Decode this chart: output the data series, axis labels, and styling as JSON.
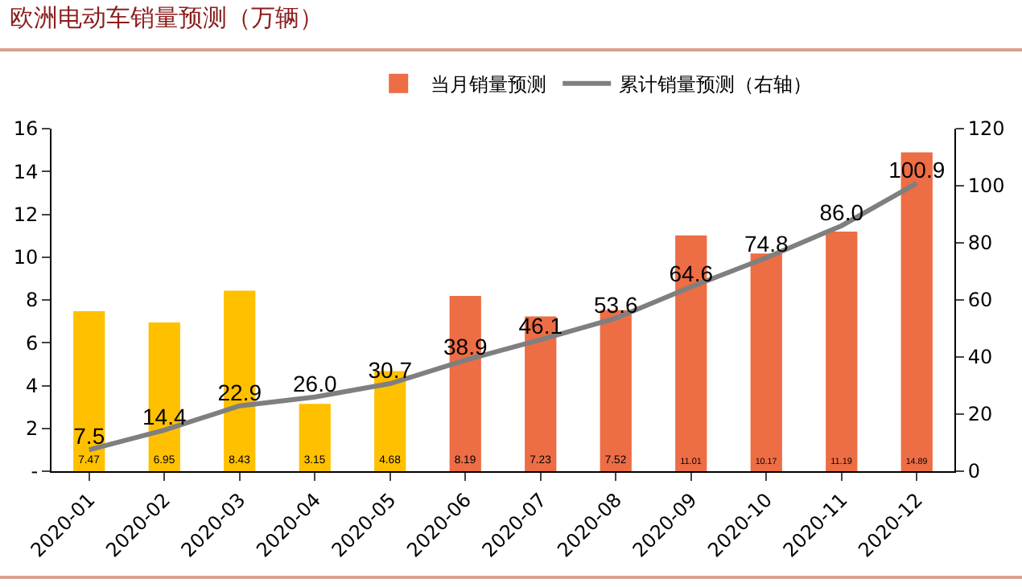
{
  "chart_data": {
    "type": "bar",
    "title": "欧洲电动车销量预测（万辆）",
    "categories": [
      "2020-01",
      "2020-02",
      "2020-03",
      "2020-04",
      "2020-05",
      "2020-06",
      "2020-07",
      "2020-08",
      "2020-09",
      "2020-10",
      "2020-11",
      "2020-12"
    ],
    "series": [
      {
        "name": "当月销量预测",
        "color": "#ed6d45",
        "colors": [
          "#ffc000",
          "#ffc000",
          "#ffc000",
          "#ffc000",
          "#ffc000",
          "#ed6d45",
          "#ed6d45",
          "#ed6d45",
          "#ed6d45",
          "#ed6d45",
          "#ed6d45",
          "#ed6d45"
        ],
        "values": [
          7.47,
          6.95,
          8.43,
          3.15,
          4.68,
          8.19,
          7.23,
          7.52,
          11.01,
          10.17,
          11.19,
          14.89
        ]
      },
      {
        "name": "累计销量预测（右轴）",
        "type": "line",
        "axis": "y2",
        "color": "#7f7f7f",
        "values": [
          7.5,
          14.4,
          22.9,
          26.0,
          30.7,
          38.9,
          46.1,
          53.6,
          64.6,
          74.8,
          86.0,
          100.9
        ],
        "value_labels": [
          "7.5",
          "14.4",
          "22.9",
          "26.0",
          "30.7",
          "38.9",
          "46.1",
          "53.6",
          "64.6",
          "74.8",
          "86.0",
          "100.9"
        ]
      }
    ],
    "ylim": [
      0,
      16
    ],
    "yticks": [
      {
        "value": 0,
        "label": "-"
      },
      2,
      4,
      6,
      8,
      10,
      12,
      14,
      16
    ],
    "y2lim": [
      0,
      120
    ],
    "y2ticks": [
      0,
      20,
      40,
      60,
      80,
      100,
      120
    ],
    "data_labels": true,
    "grid": false,
    "legend": "top",
    "marker": "none",
    "line_style": "solid"
  }
}
